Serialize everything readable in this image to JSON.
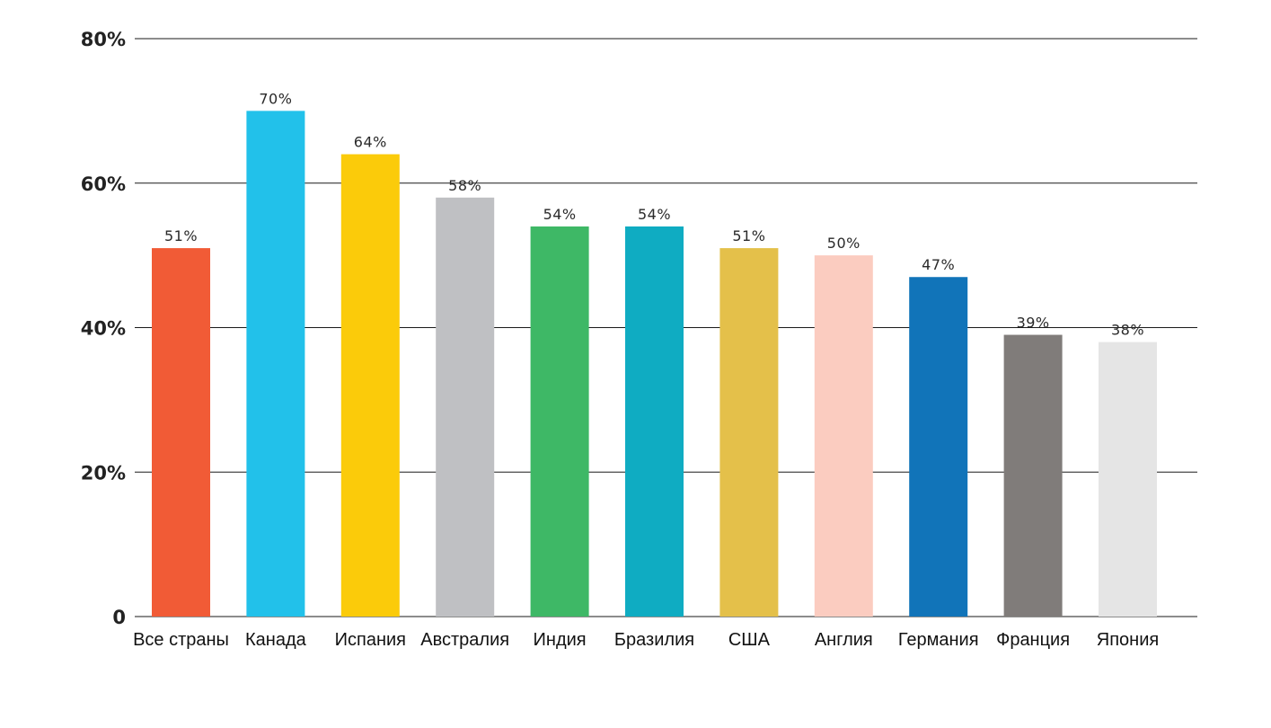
{
  "chart_data": {
    "type": "bar",
    "title": "",
    "xlabel": "",
    "ylabel": "",
    "ylim": [
      0,
      80
    ],
    "y_ticks": [
      0,
      20,
      40,
      60,
      80
    ],
    "y_tick_labels": [
      "0",
      "20%",
      "40%",
      "60%",
      "80%"
    ],
    "grid": true,
    "legend": "none",
    "categories": [
      "Все страны",
      "Канада",
      "Испания",
      "Австралия",
      "Индия",
      "Бразилия",
      "США",
      "Англия",
      "Германия",
      "Франция",
      "Япония"
    ],
    "values": [
      51,
      70,
      64,
      58,
      54,
      54,
      51,
      50,
      47,
      39,
      38
    ],
    "data_labels": [
      "51%",
      "70%",
      "64%",
      "58%",
      "54%",
      "54%",
      "51%",
      "50%",
      "47%",
      "39%",
      "38%"
    ],
    "colors": [
      "#F15B36",
      "#22C1EA",
      "#FBCB0A",
      "#BFC0C3",
      "#3EB866",
      "#0FACC2",
      "#E4C04A",
      "#FBCCC0",
      "#1174B9",
      "#807C7A",
      "#E5E5E5"
    ]
  }
}
